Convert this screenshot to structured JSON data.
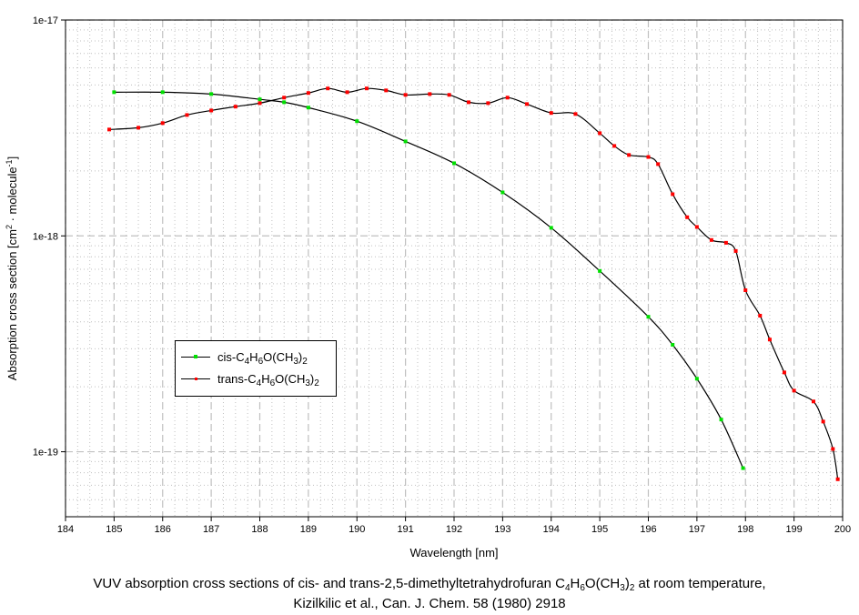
{
  "chart_data": {
    "type": "line",
    "title": "",
    "xlabel": "Wavelength [nm]",
    "ylabel_parts": [
      "Absorption cross section [cm",
      "2",
      " · molecule",
      "-1",
      "]"
    ],
    "xlim": [
      184,
      200
    ],
    "ylim": [
      5e-20,
      1e-17
    ],
    "yscale": "log",
    "grid": true,
    "legend_placement": "center-left",
    "x_ticks": [
      "184",
      "185",
      "186",
      "187",
      "188",
      "189",
      "190",
      "191",
      "192",
      "193",
      "194",
      "195",
      "196",
      "197",
      "198",
      "199",
      "200"
    ],
    "y_ticks": [
      "1e-17",
      "1e-18",
      "1e-19"
    ],
    "series": [
      {
        "name": "cis-C4H6O(CH3)2",
        "color": "#00e000",
        "x": [
          185.0,
          186.0,
          187.0,
          188.0,
          188.5,
          189.0,
          190.0,
          191.0,
          192.0,
          193.0,
          194.0,
          195.0,
          196.0,
          196.5,
          197.0,
          197.5,
          197.95
        ],
        "y": [
          4.63e-18,
          4.63e-18,
          4.54e-18,
          4.29e-18,
          4.16e-18,
          3.93e-18,
          3.4e-18,
          2.74e-18,
          2.17e-18,
          1.59e-18,
          1.09e-18,
          6.88e-19,
          4.22e-19,
          3.13e-19,
          2.18e-19,
          1.41e-19,
          8.4e-20
        ]
      },
      {
        "name": "trans-C4H6O(CH3)2",
        "color": "#ff0000",
        "x": [
          184.9,
          185.5,
          186.0,
          186.5,
          187.0,
          187.5,
          188.0,
          188.5,
          189.0,
          189.4,
          189.8,
          190.2,
          190.6,
          191.0,
          191.5,
          191.9,
          192.3,
          192.7,
          193.1,
          193.5,
          194.0,
          194.5,
          195.0,
          195.3,
          195.6,
          196.0,
          196.2,
          196.5,
          196.8,
          197.0,
          197.3,
          197.6,
          197.8,
          198.0,
          198.3,
          198.5,
          198.8,
          199.0,
          199.4,
          199.6,
          199.8,
          199.9
        ],
        "y": [
          3.11e-18,
          3.17e-18,
          3.33e-18,
          3.63e-18,
          3.81e-18,
          3.97e-18,
          4.12e-18,
          4.37e-18,
          4.59e-18,
          4.82e-18,
          4.63e-18,
          4.82e-18,
          4.72e-18,
          4.5e-18,
          4.54e-18,
          4.5e-18,
          4.16e-18,
          4.12e-18,
          4.37e-18,
          4.08e-18,
          3.71e-18,
          3.67e-18,
          2.99e-18,
          2.61e-18,
          2.37e-18,
          2.32e-18,
          2.15e-18,
          1.56e-18,
          1.22e-18,
          1.1e-18,
          9.57e-19,
          9.29e-19,
          8.51e-19,
          5.6e-19,
          4.27e-19,
          3.31e-19,
          2.33e-19,
          1.92e-19,
          1.71e-19,
          1.38e-19,
          1.03e-19,
          7.46e-20
        ]
      }
    ]
  },
  "caption": {
    "line1": "VUV absorption cross sections of cis- and trans-2,5-dimethyltetrahydrofuran C4H6O(CH3)2 at room temperature,",
    "line2": "Kizilkilic et al., Can. J. Chem. 58 (1980) 2918"
  }
}
